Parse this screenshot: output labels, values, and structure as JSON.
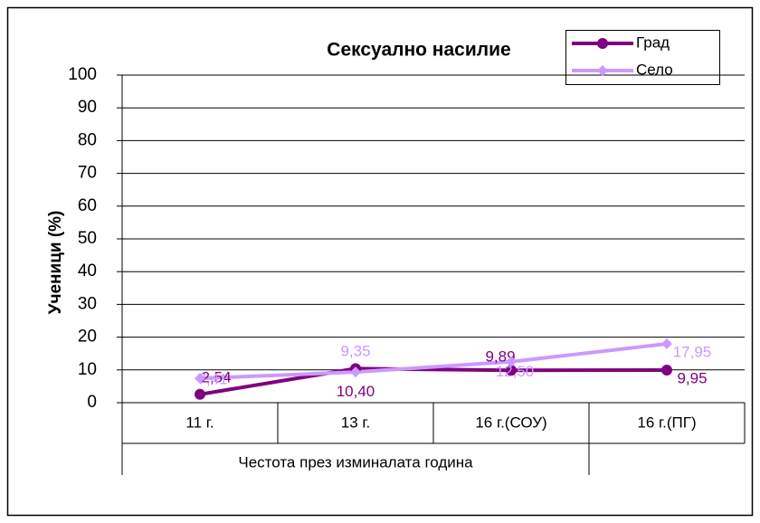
{
  "chart_data": {
    "type": "line",
    "title": "Сексуално насилие",
    "y_label": "Ученици (%)",
    "x_label": "Честота през изминалата  година",
    "categories": [
      "11 г.",
      "13 г.",
      "16 г.(СОУ)",
      "16 г.(ПГ)"
    ],
    "series": [
      {
        "name": "Град",
        "color": "#800080",
        "marker": "circle",
        "values": [
          2.54,
          10.4,
          9.89,
          9.95
        ],
        "value_labels": [
          "2,54",
          "10,40",
          "9,89",
          "9,95"
        ]
      },
      {
        "name": "Село",
        "color": "#cc99ff",
        "marker": "diamond",
        "values": [
          7.41,
          9.35,
          12.5,
          17.95
        ],
        "value_labels": [
          "7,41",
          "9,35",
          "12,50",
          "17,95"
        ]
      }
    ],
    "ylim": [
      0,
      100
    ],
    "yticks": [
      0,
      10,
      20,
      30,
      40,
      50,
      60,
      70,
      80,
      90,
      100
    ],
    "grid": true,
    "legend": "top-right"
  }
}
